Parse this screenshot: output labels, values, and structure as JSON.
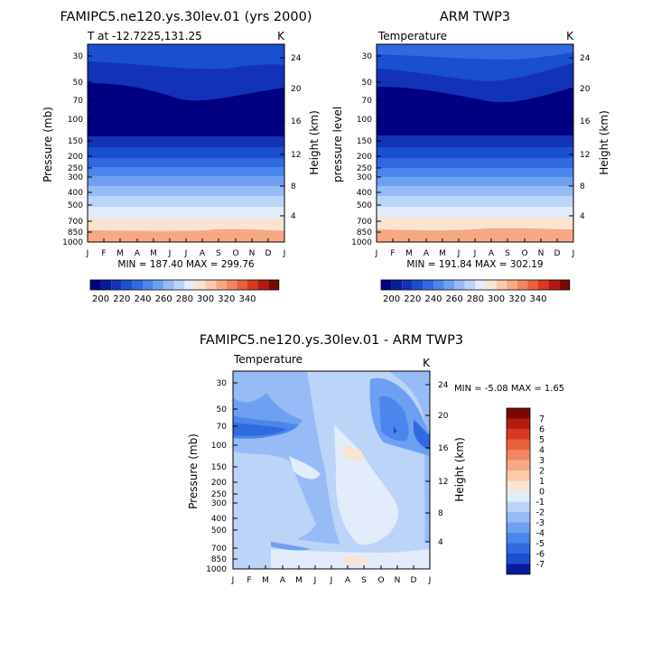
{
  "chart_data": [
    {
      "type": "heatmap",
      "title": "FAMIPC5.ne120.ys.30lev.01 (yrs 2000)",
      "subtitle_left": "T at -12.7225,131.25",
      "units": "K",
      "ylabel": "Pressure (mb)",
      "ylabel_right": "Height (km)",
      "pressure_ticks": [
        "30",
        "50",
        "70",
        "100",
        "150",
        "200",
        "250",
        "300",
        "400",
        "500",
        "700",
        "850",
        "1000"
      ],
      "height_ticks": [
        "24",
        "20",
        "16",
        "12",
        "8",
        "4"
      ],
      "months": [
        "J",
        "F",
        "M",
        "A",
        "M",
        "J",
        "J",
        "A",
        "S",
        "O",
        "N",
        "D",
        "J"
      ],
      "stats": "MIN = 187.40 MAX = 299.76",
      "cmap": "blue-white-red",
      "colorbar_labels": [
        "200",
        "220",
        "240",
        "260",
        "280",
        "300",
        "320",
        "340"
      ]
    },
    {
      "type": "heatmap",
      "title": "ARM TWP3",
      "subtitle_left": "Temperature",
      "units": "K",
      "ylabel": "pressure level",
      "ylabel_right": "Height (km)",
      "pressure_ticks": [
        "30",
        "50",
        "70",
        "100",
        "150",
        "200",
        "250",
        "300",
        "400",
        "500",
        "700",
        "850",
        "1000"
      ],
      "height_ticks": [
        "24",
        "20",
        "16",
        "12",
        "8",
        "4"
      ],
      "months": [
        "J",
        "F",
        "M",
        "A",
        "M",
        "J",
        "J",
        "A",
        "S",
        "O",
        "N",
        "D",
        "J"
      ],
      "stats": "MIN = 191.84 MAX = 302.19",
      "cmap": "blue-white-red",
      "colorbar_labels": [
        "200",
        "220",
        "240",
        "260",
        "280",
        "300",
        "320",
        "340"
      ]
    },
    {
      "type": "heatmap",
      "title": "FAMIPC5.ne120.ys.30lev.01 - ARM TWP3",
      "subtitle_left": "Temperature",
      "units": "K",
      "ylabel": "Pressure (mb)",
      "ylabel_right": "Height (km)",
      "pressure_ticks": [
        "30",
        "50",
        "70",
        "100",
        "150",
        "200",
        "250",
        "300",
        "400",
        "500",
        "700",
        "850",
        "1000"
      ],
      "height_ticks": [
        "24",
        "20",
        "16",
        "12",
        "8",
        "4"
      ],
      "months": [
        "J",
        "F",
        "M",
        "A",
        "M",
        "J",
        "J",
        "A",
        "S",
        "O",
        "N",
        "D",
        "J"
      ],
      "stats": "MIN = -5.08 MAX = 1.65",
      "cmap": "diverging",
      "colorbar_labels": [
        "7",
        "6",
        "5",
        "4",
        "3",
        "2",
        "1",
        "0",
        "-1",
        "-2",
        "-3",
        "-4",
        "-5",
        "-6",
        "-7"
      ]
    }
  ],
  "colors": {
    "abs_scale": [
      "#000080",
      "#0a1a9e",
      "#1232b8",
      "#1a4fd0",
      "#2f6ae0",
      "#4b86ec",
      "#6ea0f2",
      "#96bbf6",
      "#bcd4f8",
      "#e2ecfa",
      "#fbe3d2",
      "#fbc9ac",
      "#f7a884",
      "#f28660",
      "#e8603c",
      "#d63a22",
      "#b51a10",
      "#7a0a00"
    ],
    "diff_scale": [
      "#7a0a00",
      "#b51a10",
      "#d63a22",
      "#e8603c",
      "#f28660",
      "#f7a884",
      "#fbc9ac",
      "#fbe3d2",
      "#e2ecfa",
      "#bcd4f8",
      "#96bbf6",
      "#6ea0f2",
      "#4b86ec",
      "#2f6ae0",
      "#1a4fd0",
      "#0a1a9e"
    ]
  }
}
